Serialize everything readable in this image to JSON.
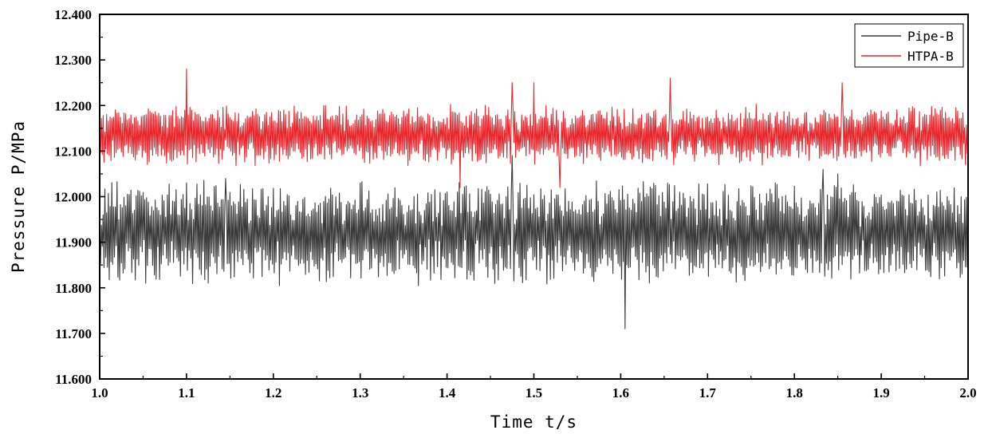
{
  "chart_data": {
    "type": "line",
    "xlabel": "Time t/s",
    "ylabel": "Pressure P/MPa",
    "xlim": [
      1.0,
      2.0
    ],
    "ylim": [
      11.6,
      12.4
    ],
    "x_ticks": [
      "1.0",
      "1.1",
      "1.2",
      "1.3",
      "1.4",
      "1.5",
      "1.6",
      "1.7",
      "1.8",
      "1.9",
      "2.0"
    ],
    "y_ticks": [
      "11.600",
      "11.700",
      "11.800",
      "11.900",
      "12.000",
      "12.100",
      "12.200",
      "12.300",
      "12.400"
    ],
    "grid": false,
    "legend_position": "top-right",
    "series": [
      {
        "name": "Pipe-B",
        "color": "#3a3a3a",
        "mean": 11.92,
        "min": 11.71,
        "max": 12.09,
        "x_start": 1.0,
        "x_end": 2.0,
        "peaks": [
          [
            1.1,
            12.03
          ],
          [
            1.145,
            12.04
          ],
          [
            1.3,
            12.03
          ],
          [
            1.475,
            12.09
          ],
          [
            1.605,
            11.71
          ],
          [
            1.833,
            12.06
          ],
          [
            1.85,
            12.05
          ]
        ]
      },
      {
        "name": "HTPA-B",
        "color": "#e8262b",
        "mean": 12.135,
        "min": 12.02,
        "max": 12.28,
        "x_start": 1.0,
        "x_end": 2.0,
        "peaks": [
          [
            1.1,
            12.28
          ],
          [
            1.475,
            12.25
          ],
          [
            1.5,
            12.25
          ],
          [
            1.657,
            12.26
          ],
          [
            1.855,
            12.25
          ],
          [
            1.415,
            12.02
          ],
          [
            1.53,
            12.02
          ]
        ]
      }
    ]
  }
}
